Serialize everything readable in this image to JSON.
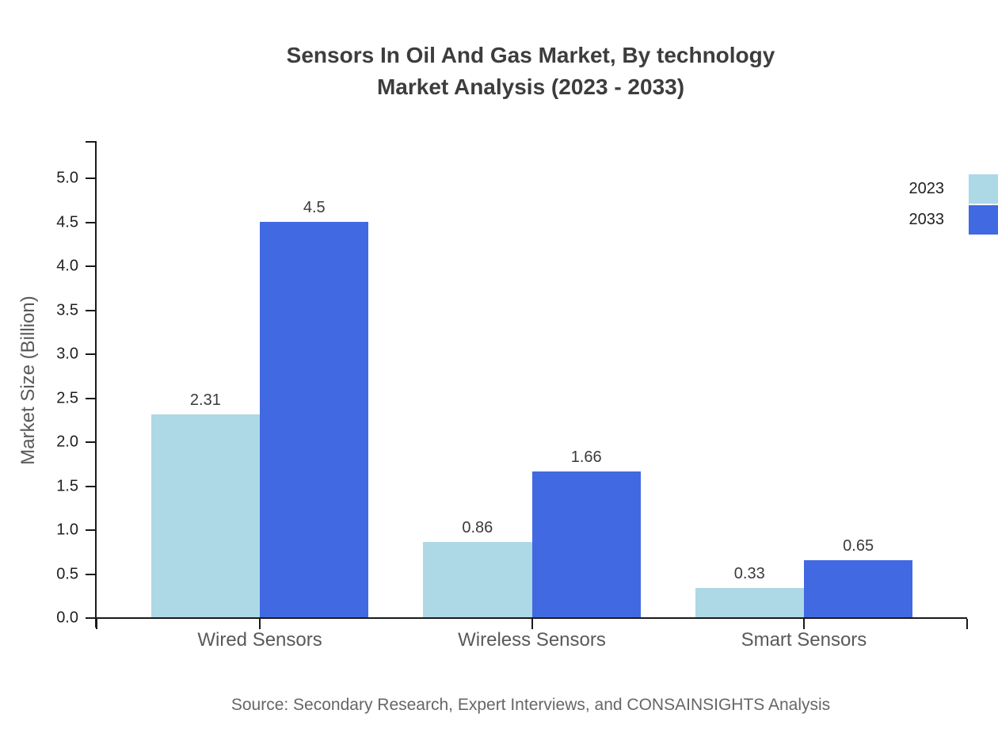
{
  "title": {
    "line1": "Sensors In Oil And Gas Market, By technology",
    "line2": "Market Analysis (2023 - 2033)"
  },
  "source": "Source: Secondary Research, Expert Interviews, and CONSAINSIGHTS Analysis",
  "chart_data": {
    "type": "bar",
    "title": "Sensors In Oil And Gas Market, By technology Market Analysis (2023 - 2033)",
    "categories": [
      "Wired Sensors",
      "Wireless Sensors",
      "Smart Sensors"
    ],
    "series": [
      {
        "name": "2023",
        "color": "#ADD8E6",
        "values": [
          2.31,
          0.86,
          0.33
        ],
        "labels": [
          "2.31",
          "0.86",
          "0.33"
        ]
      },
      {
        "name": "2033",
        "color": "#4169E1",
        "values": [
          4.5,
          1.66,
          0.65
        ],
        "labels": [
          "4.5",
          "1.66",
          "0.65"
        ]
      }
    ],
    "xlabel": "",
    "ylabel": "Market Size (Billion)",
    "ylim": [
      0,
      5.4
    ],
    "yticks": [
      "0.0",
      "0.5",
      "1.0",
      "1.5",
      "2.0",
      "2.5",
      "3.0",
      "3.5",
      "4.0",
      "4.5",
      "5.0"
    ],
    "grid": false,
    "legend_position": "upper right",
    "value_labels": true
  }
}
